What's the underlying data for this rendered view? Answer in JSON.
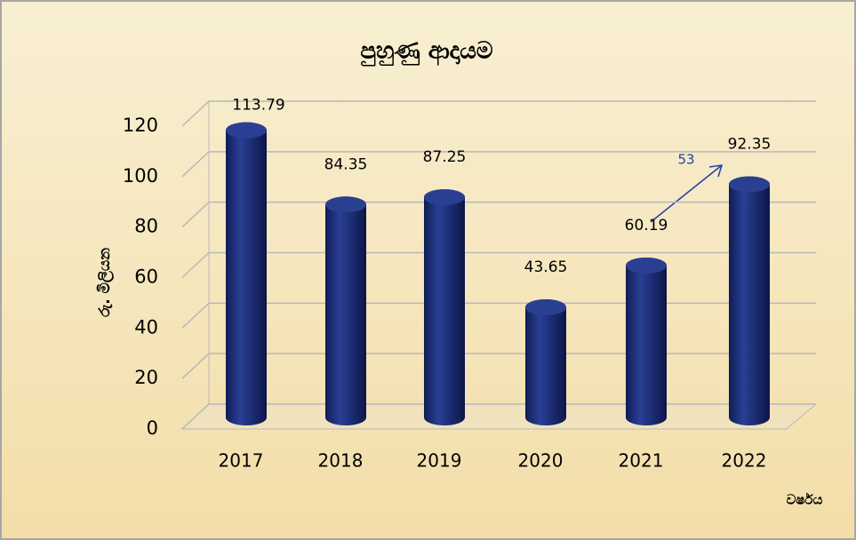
{
  "chart_data": {
    "type": "bar",
    "title": "පුහුණු ආදායම",
    "y_label": "රු. මිලියන",
    "x_label": "වර්ෂය",
    "categories": [
      "2017",
      "2018",
      "2019",
      "2020",
      "2021",
      "2022"
    ],
    "values": [
      113.79,
      84.35,
      87.25,
      43.65,
      60.19,
      92.35
    ],
    "color": "#1b2c72",
    "ylim": [
      0,
      120
    ],
    "yticks": [
      0,
      20,
      40,
      60,
      80,
      100,
      120
    ],
    "grid": true,
    "annotation": "53"
  }
}
